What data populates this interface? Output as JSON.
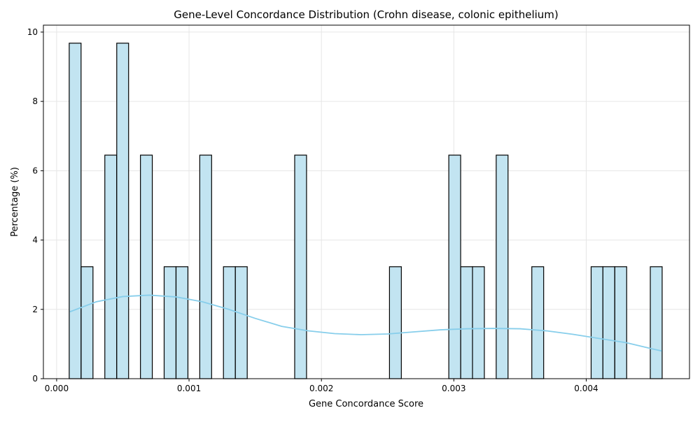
{
  "chart_data": {
    "type": "bar",
    "subtype": "histogram_with_kde",
    "title": "Gene-Level Concordance Distribution (Crohn disease, colonic epithelium)",
    "xlabel": "Gene Concordance Score",
    "ylabel": "Percentage (%)",
    "xlim": [
      -0.0001,
      0.00478
    ],
    "ylim": [
      0,
      10.2
    ],
    "x_ticks": [
      0.0,
      0.001,
      0.002,
      0.003,
      0.004
    ],
    "x_tick_labels": [
      "0.000",
      "0.001",
      "0.002",
      "0.003",
      "0.004"
    ],
    "y_ticks": [
      0,
      2,
      4,
      6,
      8,
      10
    ],
    "y_tick_labels": [
      "0",
      "2",
      "4",
      "6",
      "8",
      "10"
    ],
    "grid": true,
    "bar_color": "#c2e4f1",
    "bar_edge_color": "#000000",
    "kde_color": "#87ceeb",
    "bin_width": 8.95e-05,
    "bins": [
      {
        "x0": 9.5e-05,
        "value": 9.68
      },
      {
        "x0": 0.000185,
        "value": 3.23
      },
      {
        "x0": 0.000364,
        "value": 6.45
      },
      {
        "x0": 0.000454,
        "value": 9.68
      },
      {
        "x0": 0.000633,
        "value": 6.45
      },
      {
        "x0": 0.000812,
        "value": 3.23
      },
      {
        "x0": 0.000902,
        "value": 3.23
      },
      {
        "x0": 0.001081,
        "value": 6.45
      },
      {
        "x0": 0.00126,
        "value": 3.23
      },
      {
        "x0": 0.00135,
        "value": 3.23
      },
      {
        "x0": 0.001798,
        "value": 6.45
      },
      {
        "x0": 0.002514,
        "value": 3.23
      },
      {
        "x0": 0.002962,
        "value": 6.45
      },
      {
        "x0": 0.003052,
        "value": 3.23
      },
      {
        "x0": 0.003141,
        "value": 3.23
      },
      {
        "x0": 0.00332,
        "value": 6.45
      },
      {
        "x0": 0.003589,
        "value": 3.23
      },
      {
        "x0": 0.004037,
        "value": 3.23
      },
      {
        "x0": 0.004126,
        "value": 3.23
      },
      {
        "x0": 0.004216,
        "value": 3.23
      },
      {
        "x0": 0.004484,
        "value": 3.23
      }
    ],
    "kde": {
      "x": [
        0.0001,
        0.0003,
        0.0005,
        0.0007,
        0.0009,
        0.0011,
        0.0013,
        0.0015,
        0.0017,
        0.0019,
        0.0021,
        0.0023,
        0.0025,
        0.0027,
        0.0029,
        0.0031,
        0.0033,
        0.0035,
        0.0037,
        0.0039,
        0.0041,
        0.0043,
        0.0045,
        0.00457
      ],
      "y": [
        1.93,
        2.22,
        2.37,
        2.41,
        2.36,
        2.22,
        2.0,
        1.74,
        1.51,
        1.38,
        1.3,
        1.27,
        1.29,
        1.35,
        1.41,
        1.44,
        1.45,
        1.44,
        1.38,
        1.28,
        1.16,
        1.04,
        0.86,
        0.8
      ]
    }
  }
}
